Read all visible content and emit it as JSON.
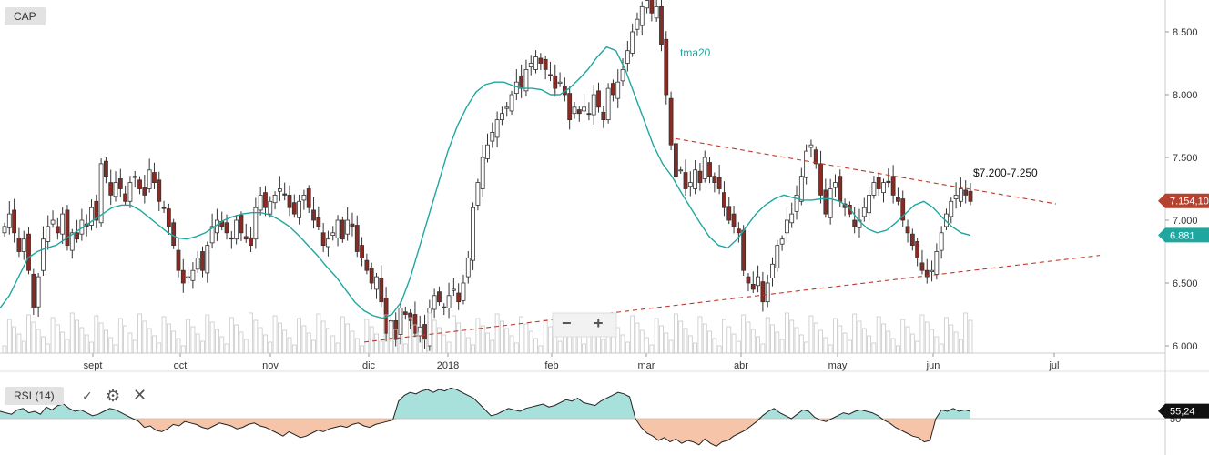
{
  "symbol": "CAP",
  "chart_data": {
    "type": "candlestick",
    "title": "",
    "x_ticks": [
      "sept",
      "oct",
      "nov",
      "dic",
      "2018",
      "feb",
      "mar",
      "abr",
      "may",
      "jun",
      "jul"
    ],
    "y_ticks": [
      "8.500",
      "8.000",
      "7.500",
      "7.000",
      "6.500",
      "6.000"
    ],
    "ylim": [
      6.0,
      8.8
    ],
    "ma_label": "tma20",
    "annotation": "$7.200-7.250",
    "last_price": "7.154,10",
    "ma_value": "6.881",
    "close_series": [
      6.95,
      7.05,
      6.9,
      6.75,
      6.85,
      6.6,
      6.3,
      6.55,
      6.85,
      6.95,
      7.0,
      6.9,
      7.05,
      6.8,
      6.9,
      6.85,
      7.0,
      6.95,
      7.1,
      7.0,
      7.45,
      7.35,
      7.2,
      7.3,
      7.25,
      7.15,
      7.3,
      7.35,
      7.25,
      7.2,
      7.4,
      7.3,
      7.15,
      7.1,
      6.95,
      6.8,
      6.6,
      6.5,
      6.55,
      6.6,
      6.7,
      6.6,
      6.8,
      6.95,
      7.0,
      6.95,
      6.9,
      6.85,
      7.0,
      6.9,
      6.85,
      6.8,
      7.1,
      7.2,
      7.1,
      7.15,
      7.2,
      7.25,
      7.2,
      7.1,
      7.05,
      7.15,
      7.2,
      7.1,
      7.0,
      6.95,
      6.8,
      6.85,
      6.9,
      7.0,
      6.85,
      7.0,
      6.95,
      6.75,
      6.7,
      6.6,
      6.5,
      6.55,
      6.35,
      6.1,
      6.2,
      6.05,
      6.3,
      6.25,
      6.2,
      6.1,
      6.15,
      6.05,
      6.3,
      6.4,
      6.35,
      6.3,
      6.4,
      6.45,
      6.35,
      6.5,
      6.7,
      7.1,
      7.3,
      7.5,
      7.6,
      7.7,
      7.8,
      7.85,
      7.9,
      8.0,
      8.1,
      8.05,
      8.2,
      8.25,
      8.3,
      8.25,
      8.2,
      8.15,
      8.05,
      8.1,
      8.0,
      7.8,
      7.9,
      7.85,
      7.9,
      7.85,
      8.0,
      7.9,
      7.8,
      8.05,
      8.0,
      8.1,
      8.2,
      8.35,
      8.5,
      8.6,
      8.7,
      8.75,
      8.65,
      8.7,
      8.4,
      8.0,
      7.6,
      7.35,
      7.4,
      7.25,
      7.3,
      7.4,
      7.3,
      7.5,
      7.35,
      7.3,
      7.25,
      7.1,
      7.0,
      6.95,
      6.9,
      6.6,
      6.5,
      6.45,
      6.55,
      6.35,
      6.5,
      6.65,
      6.8,
      6.85,
      7.0,
      7.05,
      7.2,
      7.35,
      7.55,
      7.6,
      7.45,
      7.2,
      7.05,
      7.25,
      7.3,
      7.15,
      7.1,
      7.05,
      6.95,
      7.0,
      7.1,
      7.2,
      7.3,
      7.25,
      7.3,
      7.3,
      7.2,
      7.15,
      7.0,
      6.9,
      6.8,
      6.7,
      6.6,
      6.55,
      6.6,
      6.75,
      6.9,
      7.05,
      7.15,
      7.2,
      7.25,
      7.2,
      7.15
    ],
    "ma_series": [
      6.3,
      6.4,
      6.55,
      6.7,
      6.75,
      6.78,
      6.8,
      6.85,
      6.9,
      6.95,
      7.0,
      7.05,
      7.1,
      7.12,
      7.12,
      7.08,
      7.02,
      6.96,
      6.9,
      6.86,
      6.85,
      6.87,
      6.9,
      6.95,
      7.0,
      7.03,
      7.05,
      7.06,
      7.06,
      7.04,
      7.0,
      6.95,
      6.88,
      6.8,
      6.72,
      6.63,
      6.55,
      6.45,
      6.35,
      6.28,
      6.24,
      6.22,
      6.25,
      6.35,
      6.55,
      6.8,
      7.05,
      7.3,
      7.55,
      7.75,
      7.9,
      8.02,
      8.08,
      8.1,
      8.1,
      8.07,
      8.05,
      8.05,
      8.04,
      8.0,
      8.0,
      8.05,
      8.12,
      8.2,
      8.3,
      8.38,
      8.35,
      8.2,
      8.0,
      7.8,
      7.6,
      7.45,
      7.35,
      7.22,
      7.1,
      6.98,
      6.87,
      6.8,
      6.78,
      6.85,
      6.95,
      7.05,
      7.12,
      7.17,
      7.2,
      7.18,
      7.16,
      7.16,
      7.17,
      7.17,
      7.15,
      7.1,
      7.0,
      6.93,
      6.9,
      6.92,
      6.98,
      7.05,
      7.12,
      7.15,
      7.1,
      7.02,
      6.95,
      6.9,
      6.88
    ],
    "rsi_label": "RSI (14)",
    "rsi_value": "55,24",
    "rsi_level": "50",
    "rsi_series": [
      55,
      54,
      53,
      56,
      57,
      54,
      55,
      53,
      58,
      56,
      59,
      60,
      57,
      55,
      56,
      54,
      52,
      53,
      55,
      57,
      56,
      54,
      52,
      50,
      48,
      44,
      45,
      42,
      41,
      43,
      46,
      45,
      48,
      47,
      46,
      44,
      43,
      45,
      47,
      46,
      45,
      43,
      44,
      46,
      47,
      45,
      44,
      42,
      40,
      38,
      41,
      39,
      37,
      38,
      40,
      42,
      41,
      43,
      44,
      45,
      44,
      46,
      47,
      45,
      44,
      46,
      47,
      48,
      49,
      62,
      66,
      68,
      67,
      69,
      70,
      68,
      70,
      69,
      71,
      70,
      68,
      66,
      64,
      60,
      56,
      52,
      53,
      55,
      57,
      56,
      55,
      57,
      58,
      59,
      60,
      58,
      59,
      61,
      63,
      62,
      64,
      61,
      60,
      59,
      62,
      64,
      66,
      68,
      67,
      65,
      50,
      44,
      40,
      38,
      35,
      37,
      34,
      36,
      33,
      35,
      34,
      32,
      36,
      33,
      31,
      34,
      35,
      38,
      40,
      42,
      45,
      48,
      52,
      55,
      57,
      54,
      52,
      50,
      53,
      56,
      55,
      51,
      49,
      48,
      50,
      52,
      54,
      53,
      55,
      56,
      55,
      54,
      52,
      49,
      47,
      44,
      42,
      40,
      38,
      37,
      34,
      35,
      50,
      56,
      55,
      57,
      55,
      56,
      55
    ]
  }
}
